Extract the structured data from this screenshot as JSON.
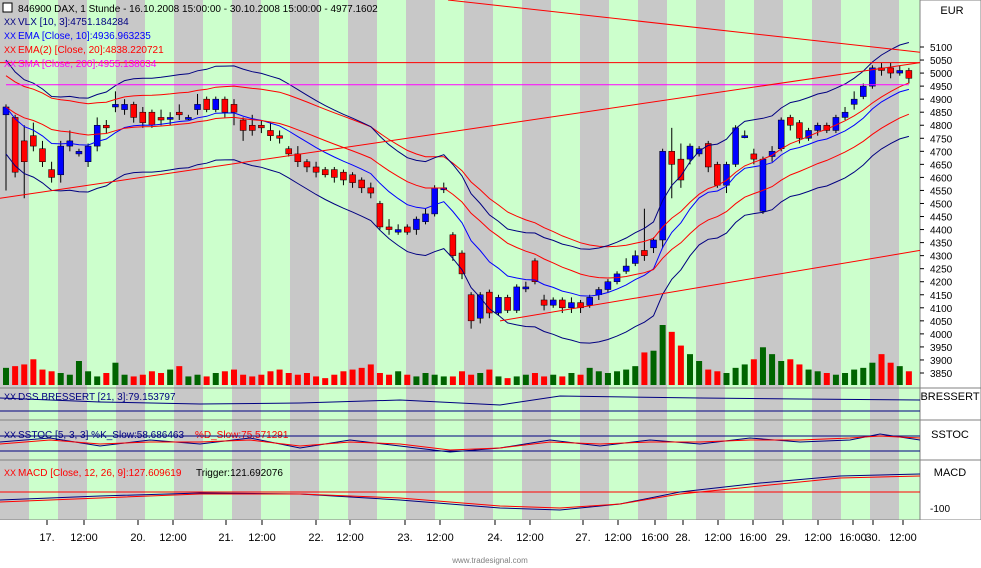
{
  "header": {
    "title": "846900  DAX, 1 Stunde - 16.10.2008 15:00:00 - 30.10.2008 15:00:00 - 4977.1602",
    "currency": "EUR"
  },
  "legend": [
    {
      "text": "VLX [10, 3]:4751.184284",
      "color": "#000080"
    },
    {
      "text": "EMA [Close, 10]:4936.963235",
      "color": "#0000ff"
    },
    {
      "text": "EMA(2) [Close, 20]:4838.220721",
      "color": "#ff0000"
    },
    {
      "text": "SMA [Close, 200]:4955.138034",
      "color": "#ff00ff"
    }
  ],
  "panels": {
    "dss": {
      "label": "DSS BRESSERT [21, 3]:79.153797",
      "name": "BRESSERT"
    },
    "sstoc": {
      "label_k": "SSTOC [5, 3, 3] %K_Slow:58.686463",
      "label_d": "%D_Slow:75.571291",
      "name": "SSTOC"
    },
    "macd": {
      "label_a": "MACD [Close, 12, 26, 9]:127.609619",
      "label_b": "Trigger:121.692076",
      "name": "MACD",
      "axis_label": "-100"
    }
  },
  "x_axis_labels": [
    "17.",
    "12:00",
    "20.",
    "12:00",
    "21.",
    "12:00",
    "22.",
    "12:00",
    "23.",
    "12:00",
    "24.",
    "12:00",
    "27.",
    "12:00",
    "16:00",
    "28.",
    "12:00",
    "16:00",
    "29.",
    "12:00",
    "16:00",
    "30.",
    "12:00"
  ],
  "footer": "www.tradesignal.com",
  "colors": {
    "up": "#0000ff",
    "down": "#ff0000",
    "vol_up": "#006400",
    "vol_down": "#ff0000",
    "band_a": "#ccffcc",
    "band_b": "#c8c8c8"
  },
  "chart_data": {
    "type": "candlestick",
    "y_ticks": [
      5100,
      5050,
      5000,
      4950,
      4900,
      4850,
      4800,
      4750,
      4700,
      4650,
      4600,
      4550,
      4500,
      4450,
      4400,
      4350,
      4300,
      4250,
      4200,
      4150,
      4100,
      4050,
      4000,
      3950,
      3900,
      3850
    ],
    "ylim": [
      3850,
      5100
    ],
    "candles": [
      {
        "o": 4840,
        "c": 4870,
        "h": 4880,
        "l": 4550
      },
      {
        "o": 4830,
        "c": 4620,
        "h": 4840,
        "l": 4600
      },
      {
        "o": 4740,
        "c": 4660,
        "h": 4800,
        "l": 4520
      },
      {
        "o": 4760,
        "c": 4720,
        "h": 4810,
        "l": 4700
      },
      {
        "o": 4710,
        "c": 4660,
        "h": 4740,
        "l": 4640
      },
      {
        "o": 4630,
        "c": 4600,
        "h": 4660,
        "l": 4580
      },
      {
        "o": 4610,
        "c": 4720,
        "h": 4740,
        "l": 4580
      },
      {
        "o": 4720,
        "c": 4740,
        "h": 4780,
        "l": 4700
      },
      {
        "o": 4690,
        "c": 4700,
        "h": 4710,
        "l": 4680
      },
      {
        "o": 4660,
        "c": 4720,
        "h": 4730,
        "l": 4640
      },
      {
        "o": 4720,
        "c": 4800,
        "h": 4830,
        "l": 4700
      },
      {
        "o": 4800,
        "c": 4790,
        "h": 4820,
        "l": 4770
      },
      {
        "o": 4870,
        "c": 4880,
        "h": 4930,
        "l": 4850
      },
      {
        "o": 4860,
        "c": 4880,
        "h": 4900,
        "l": 4840
      },
      {
        "o": 4880,
        "c": 4830,
        "h": 4890,
        "l": 4810
      },
      {
        "o": 4850,
        "c": 4810,
        "h": 4870,
        "l": 4790
      },
      {
        "o": 4850,
        "c": 4800,
        "h": 4860,
        "l": 4790
      },
      {
        "o": 4830,
        "c": 4820,
        "h": 4860,
        "l": 4800
      },
      {
        "o": 4830,
        "c": 4830,
        "h": 4850,
        "l": 4800
      },
      {
        "o": 4850,
        "c": 4840,
        "h": 4880,
        "l": 4820
      },
      {
        "o": 4830,
        "c": 4830,
        "h": 4840,
        "l": 4820
      },
      {
        "o": 4860,
        "c": 4880,
        "h": 4920,
        "l": 4840
      },
      {
        "o": 4900,
        "c": 4860,
        "h": 4910,
        "l": 4850
      },
      {
        "o": 4860,
        "c": 4900,
        "h": 4910,
        "l": 4850
      },
      {
        "o": 4900,
        "c": 4850,
        "h": 4910,
        "l": 4830
      },
      {
        "o": 4880,
        "c": 4850,
        "h": 4900,
        "l": 4800
      },
      {
        "o": 4820,
        "c": 4780,
        "h": 4830,
        "l": 4740
      },
      {
        "o": 4800,
        "c": 4780,
        "h": 4840,
        "l": 4760
      },
      {
        "o": 4800,
        "c": 4790,
        "h": 4820,
        "l": 4770
      },
      {
        "o": 4780,
        "c": 4760,
        "h": 4810,
        "l": 4740
      },
      {
        "o": 4760,
        "c": 4750,
        "h": 4780,
        "l": 4730
      },
      {
        "o": 4710,
        "c": 4690,
        "h": 4720,
        "l": 4680
      },
      {
        "o": 4690,
        "c": 4660,
        "h": 4720,
        "l": 4640
      },
      {
        "o": 4660,
        "c": 4640,
        "h": 4670,
        "l": 4620
      },
      {
        "o": 4640,
        "c": 4620,
        "h": 4660,
        "l": 4600
      },
      {
        "o": 4630,
        "c": 4610,
        "h": 4640,
        "l": 4600
      },
      {
        "o": 4630,
        "c": 4600,
        "h": 4640,
        "l": 4580
      },
      {
        "o": 4620,
        "c": 4590,
        "h": 4630,
        "l": 4570
      },
      {
        "o": 4610,
        "c": 4580,
        "h": 4620,
        "l": 4560
      },
      {
        "o": 4590,
        "c": 4560,
        "h": 4600,
        "l": 4540
      },
      {
        "o": 4560,
        "c": 4540,
        "h": 4580,
        "l": 4520
      },
      {
        "o": 4500,
        "c": 4410,
        "h": 4510,
        "l": 4400
      },
      {
        "o": 4410,
        "c": 4400,
        "h": 4440,
        "l": 4380
      },
      {
        "o": 4390,
        "c": 4400,
        "h": 4420,
        "l": 4380
      },
      {
        "o": 4410,
        "c": 4390,
        "h": 4420,
        "l": 4380
      },
      {
        "o": 4400,
        "c": 4440,
        "h": 4450,
        "l": 4380
      },
      {
        "o": 4430,
        "c": 4460,
        "h": 4480,
        "l": 4420
      },
      {
        "o": 4460,
        "c": 4560,
        "h": 4570,
        "l": 4450
      },
      {
        "o": 4560,
        "c": 4560,
        "h": 4580,
        "l": 4540
      },
      {
        "o": 4380,
        "c": 4300,
        "h": 4390,
        "l": 4280
      },
      {
        "o": 4310,
        "c": 4230,
        "h": 4320,
        "l": 4210
      },
      {
        "o": 4150,
        "c": 4050,
        "h": 4160,
        "l": 4020
      },
      {
        "o": 4060,
        "c": 4150,
        "h": 4160,
        "l": 4040
      },
      {
        "o": 4160,
        "c": 4080,
        "h": 4170,
        "l": 4060
      },
      {
        "o": 4080,
        "c": 4140,
        "h": 4150,
        "l": 4070
      },
      {
        "o": 4140,
        "c": 4090,
        "h": 4150,
        "l": 4080
      },
      {
        "o": 4090,
        "c": 4180,
        "h": 4190,
        "l": 4080
      },
      {
        "o": 4180,
        "c": 4180,
        "h": 4200,
        "l": 4160
      },
      {
        "o": 4280,
        "c": 4200,
        "h": 4290,
        "l": 4190
      },
      {
        "o": 4130,
        "c": 4110,
        "h": 4150,
        "l": 4090
      },
      {
        "o": 4110,
        "c": 4130,
        "h": 4140,
        "l": 4100
      },
      {
        "o": 4130,
        "c": 4100,
        "h": 4140,
        "l": 4080
      },
      {
        "o": 4100,
        "c": 4120,
        "h": 4140,
        "l": 4080
      },
      {
        "o": 4120,
        "c": 4100,
        "h": 4130,
        "l": 4080
      },
      {
        "o": 4110,
        "c": 4140,
        "h": 4150,
        "l": 4100
      },
      {
        "o": 4150,
        "c": 4170,
        "h": 4180,
        "l": 4130
      },
      {
        "o": 4170,
        "c": 4200,
        "h": 4210,
        "l": 4160
      },
      {
        "o": 4200,
        "c": 4230,
        "h": 4240,
        "l": 4190
      },
      {
        "o": 4240,
        "c": 4260,
        "h": 4290,
        "l": 4230
      },
      {
        "o": 4270,
        "c": 4300,
        "h": 4320,
        "l": 4260
      },
      {
        "o": 4320,
        "c": 4300,
        "h": 4480,
        "l": 4280
      },
      {
        "o": 4330,
        "c": 4360,
        "h": 4370,
        "l": 4310
      },
      {
        "o": 4360,
        "c": 4700,
        "h": 4710,
        "l": 4330
      },
      {
        "o": 4700,
        "c": 4650,
        "h": 4790,
        "l": 4520
      },
      {
        "o": 4670,
        "c": 4590,
        "h": 4730,
        "l": 4560
      },
      {
        "o": 4670,
        "c": 4720,
        "h": 4730,
        "l": 4650
      },
      {
        "o": 4690,
        "c": 4710,
        "h": 4720,
        "l": 4680
      },
      {
        "o": 4730,
        "c": 4640,
        "h": 4740,
        "l": 4620
      },
      {
        "o": 4650,
        "c": 4570,
        "h": 4660,
        "l": 4560
      },
      {
        "o": 4570,
        "c": 4650,
        "h": 4660,
        "l": 4540
      },
      {
        "o": 4650,
        "c": 4790,
        "h": 4800,
        "l": 4640
      },
      {
        "o": 4760,
        "c": 4760,
        "h": 4780,
        "l": 4750
      },
      {
        "o": 4690,
        "c": 4670,
        "h": 4710,
        "l": 4650
      },
      {
        "o": 4470,
        "c": 4670,
        "h": 4680,
        "l": 4460
      },
      {
        "o": 4680,
        "c": 4700,
        "h": 4720,
        "l": 4660
      },
      {
        "o": 4710,
        "c": 4820,
        "h": 4830,
        "l": 4700
      },
      {
        "o": 4830,
        "c": 4800,
        "h": 4840,
        "l": 4780
      },
      {
        "o": 4810,
        "c": 4750,
        "h": 4820,
        "l": 4730
      },
      {
        "o": 4750,
        "c": 4780,
        "h": 4790,
        "l": 4740
      },
      {
        "o": 4780,
        "c": 4800,
        "h": 4810,
        "l": 4760
      },
      {
        "o": 4800,
        "c": 4780,
        "h": 4810,
        "l": 4770
      },
      {
        "o": 4780,
        "c": 4830,
        "h": 4840,
        "l": 4770
      },
      {
        "o": 4830,
        "c": 4850,
        "h": 4870,
        "l": 4820
      },
      {
        "o": 4880,
        "c": 4900,
        "h": 4930,
        "l": 4860
      },
      {
        "o": 4910,
        "c": 4950,
        "h": 4960,
        "l": 4900
      },
      {
        "o": 4950,
        "c": 5020,
        "h": 5030,
        "l": 4940
      },
      {
        "o": 5020,
        "c": 5010,
        "h": 5040,
        "l": 4990
      },
      {
        "o": 5020,
        "c": 5000,
        "h": 5040,
        "l": 4980
      },
      {
        "o": 5000,
        "c": 5010,
        "h": 5030,
        "l": 4990
      },
      {
        "o": 5010,
        "c": 4980,
        "h": 5020,
        "l": 4960
      }
    ]
  }
}
